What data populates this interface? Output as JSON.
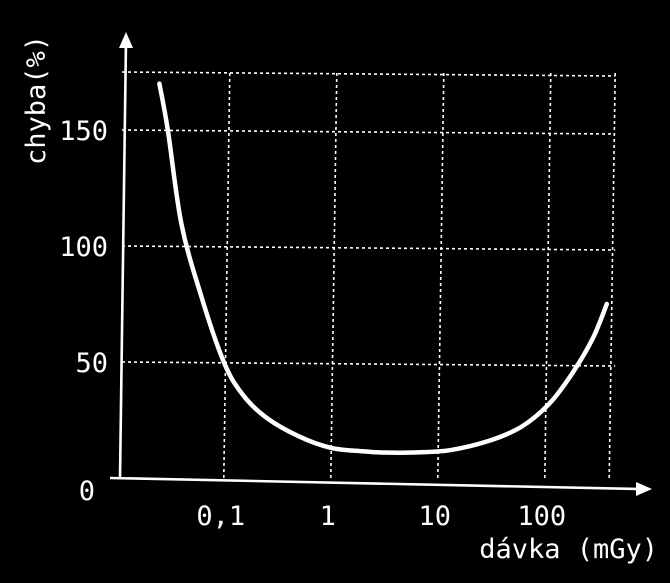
{
  "chart_data": {
    "type": "line",
    "title": "",
    "xlabel": "dávka (mGy)",
    "ylabel": "chyba(%)",
    "x_scale": "log",
    "x_tick_labels": [
      "0,1",
      "1",
      "10",
      "100"
    ],
    "x_tick_values": [
      0.1,
      1,
      10,
      100
    ],
    "y_tick_labels": [
      "0",
      "50",
      "100",
      "150"
    ],
    "y_tick_values": [
      0,
      50,
      100,
      150
    ],
    "xlim": [
      0.01,
      1000
    ],
    "ylim": [
      0,
      175
    ],
    "grid": true,
    "series": [
      {
        "x": [
          0.025,
          0.03,
          0.04,
          0.06,
          0.1,
          0.15,
          0.25,
          0.5,
          1,
          2,
          3,
          6,
          13,
          30,
          60,
          110,
          180,
          280,
          380
        ],
        "y": [
          170,
          150,
          110,
          80,
          50,
          36,
          26,
          18,
          13,
          11.5,
          11,
          11,
          12,
          16,
          22,
          32,
          45,
          60,
          75
        ]
      }
    ]
  }
}
